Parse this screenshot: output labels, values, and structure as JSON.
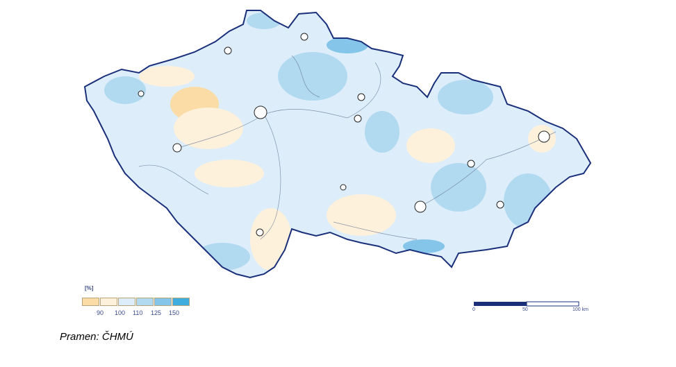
{
  "legend": {
    "unit": "[%]",
    "colors": [
      "#fbdca6",
      "#fdf1dc",
      "#ddeefa",
      "#b1d9f0",
      "#85c5ea",
      "#3fadde"
    ],
    "labels": [
      "90",
      "100",
      "110",
      "125",
      "150"
    ]
  },
  "scale_bar": {
    "labels": [
      "0",
      "50",
      "100 km"
    ],
    "color": "#1a2f7a"
  },
  "map": {
    "border_color": "#1a2f7a",
    "river_color": "#5a6a8a"
  },
  "source": "Pramen: ČHMÚ"
}
